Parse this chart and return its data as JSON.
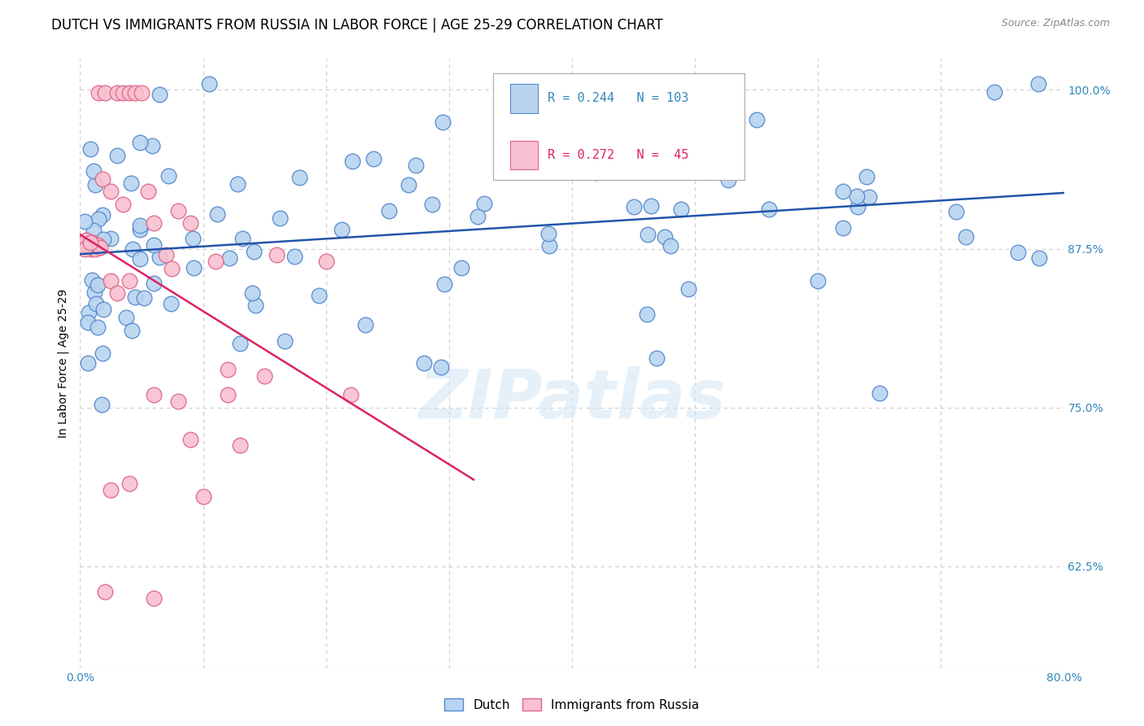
{
  "title": "DUTCH VS IMMIGRANTS FROM RUSSIA IN LABOR FORCE | AGE 25-29 CORRELATION CHART",
  "source": "Source: ZipAtlas.com",
  "ylabel": "In Labor Force | Age 25-29",
  "xlim": [
    0.0,
    0.8
  ],
  "ylim": [
    0.545,
    1.025
  ],
  "xtick_positions": [
    0.0,
    0.1,
    0.2,
    0.3,
    0.4,
    0.5,
    0.6,
    0.7,
    0.8
  ],
  "yticks_right": [
    0.625,
    0.75,
    0.875,
    1.0
  ],
  "ytick_right_labels": [
    "62.5%",
    "75.0%",
    "87.5%",
    "100.0%"
  ],
  "watermark": "ZIPatlas",
  "blue_color": "#b8d4f0",
  "blue_edge": "#5588cc",
  "pink_color": "#f8c0d0",
  "pink_edge": "#dd6688",
  "trend_blue": "#2255aa",
  "trend_pink": "#dd2266",
  "grid_color": "#cccccc",
  "title_fontsize": 12,
  "axis_label_fontsize": 10,
  "tick_fontsize": 10,
  "legend_text_blue": "R = 0.244   N = 103",
  "legend_text_pink": "R = 0.272   N =  45"
}
